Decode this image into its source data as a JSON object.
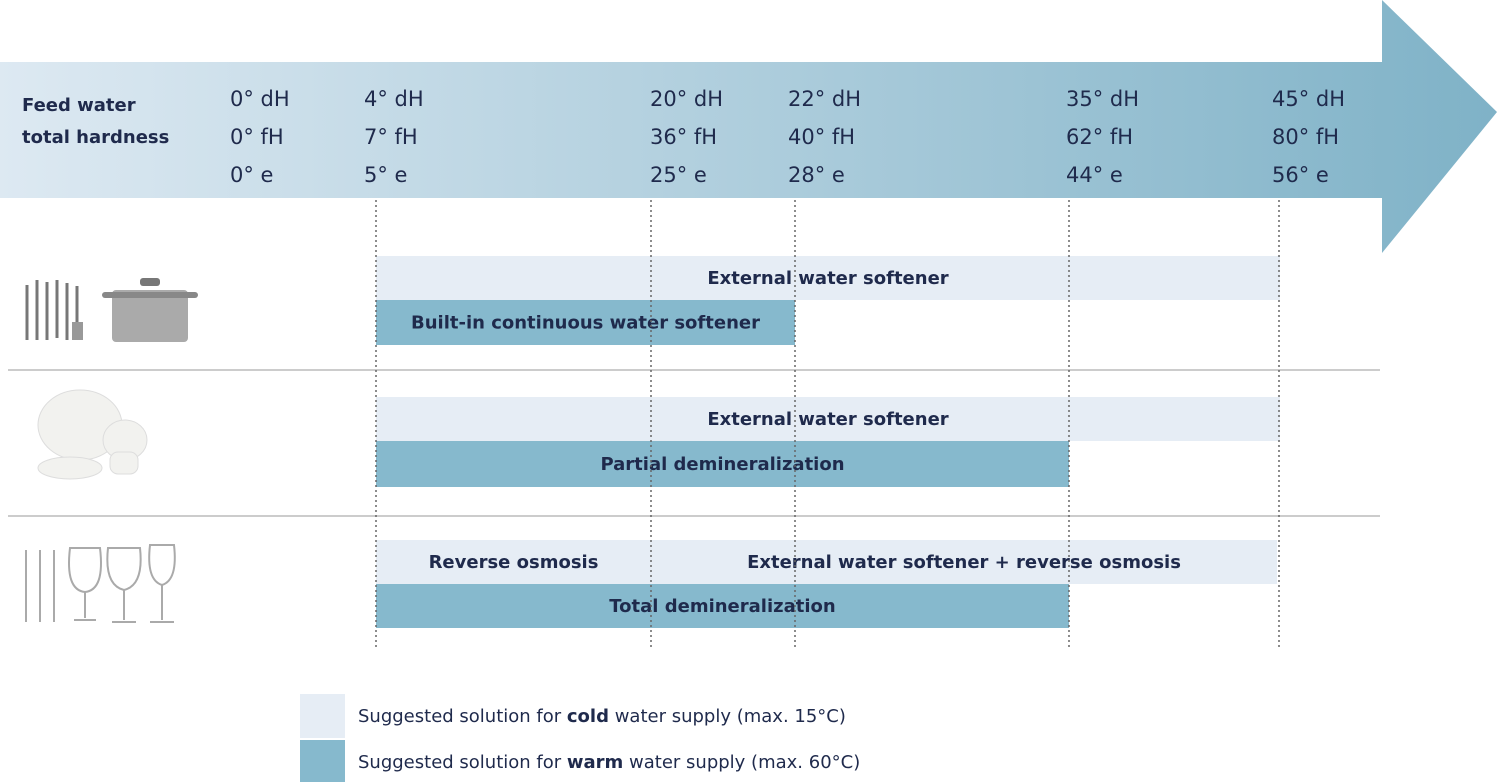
{
  "header": {
    "label_lines": [
      "Feed water",
      "total hardness"
    ],
    "columns": [
      [
        "0° dH",
        "0° fH",
        "0° e"
      ],
      [
        "4° dH",
        "7° fH",
        "5° e"
      ],
      [
        "20° dH",
        "36° fH",
        "25° e"
      ],
      [
        "22° dH",
        "40° fH",
        "28° e"
      ],
      [
        "35° dH",
        "62° fH",
        "44° e"
      ],
      [
        "45° dH",
        "80° fH",
        "56° e"
      ]
    ]
  },
  "rows": [
    {
      "bars": [
        {
          "label": "External water softener",
          "color": "#e6edf5"
        },
        {
          "label": "Built-in continuous water softener",
          "color": "#86b9cd"
        }
      ]
    },
    {
      "bars": [
        {
          "label": "External water softener",
          "color": "#e6edf5"
        },
        {
          "label": "Partial demineralization",
          "color": "#86b9cd"
        }
      ]
    },
    {
      "bars": [
        {
          "label": "Reverse osmosis",
          "color": "#e6edf5"
        },
        {
          "label": "External water softener + reverse osmosis",
          "color": "#e6edf5"
        },
        {
          "label": "Total demineralization",
          "color": "#86b9cd"
        }
      ]
    }
  ],
  "legend": [
    {
      "parts": [
        "Suggested solution for ",
        "cold",
        " water supply (max. 15°C)"
      ],
      "color": "#e6edf5"
    },
    {
      "parts": [
        "Suggested solution for ",
        "warm",
        " water supply (max. 60°C)"
      ],
      "color": "#86b9cd"
    }
  ]
}
